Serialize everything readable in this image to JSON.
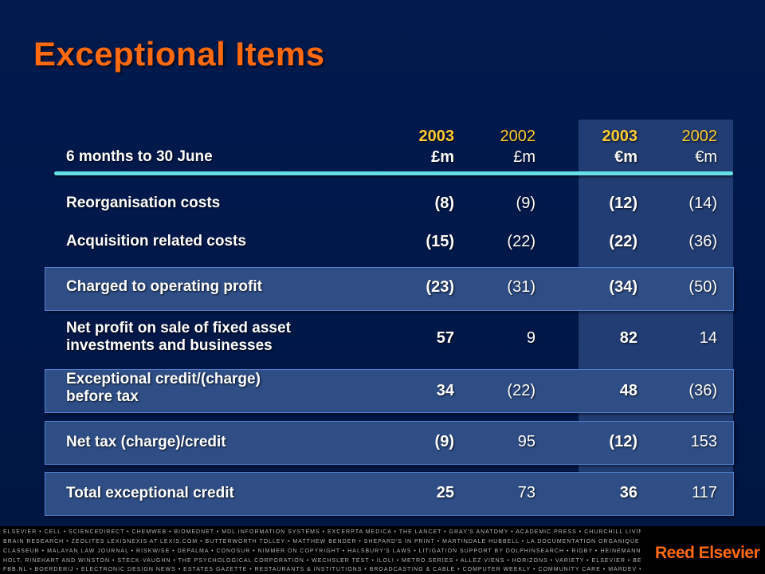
{
  "title": "Exceptional Items",
  "header": {
    "label": "6 months to 30 June",
    "columns": [
      {
        "year": "2003",
        "currency": "£m"
      },
      {
        "year": "2002",
        "currency": "£m"
      },
      {
        "year": "2003",
        "currency": "€m"
      },
      {
        "year": "2002",
        "currency": "€m"
      }
    ]
  },
  "rows": [
    {
      "label": "Reorganisation costs",
      "values": [
        "(8)",
        "(9)",
        "(12)",
        "(14)"
      ]
    },
    {
      "label": "Acquisition related costs",
      "values": [
        "(15)",
        "(22)",
        "(22)",
        "(36)"
      ]
    },
    {
      "label": "Charged to operating profit",
      "values": [
        "(23)",
        "(31)",
        "(34)",
        "(50)"
      ]
    },
    {
      "label_lines": [
        "Net profit on sale of fixed asset",
        "investments and businesses"
      ],
      "values": [
        "57",
        "9",
        "82",
        "14"
      ]
    },
    {
      "label_lines": [
        "Exceptional credit/(charge)",
        "before tax"
      ],
      "values": [
        "34",
        "(22)",
        "48",
        "(36)"
      ]
    },
    {
      "label": "Net tax (charge)/credit",
      "values": [
        "(9)",
        "95",
        "(12)",
        "153"
      ]
    },
    {
      "label": "Total exceptional credit",
      "values": [
        "25",
        "73",
        "36",
        "117"
      ]
    }
  ],
  "footer": {
    "lines": [
      "ELSEVIER • CELL • SCIENCEDIRECT • CHEMWEB • BIOMEDNET • MDL INFORMATION SYSTEMS • EXCERPTA MEDICA • THE LANCET • GRAY'S ANATOMY • ACADEMIC PRESS • CHURCHILL LIVINGSTONE • MOSBY • WB SAUNDERS • MD CONSULT",
      "BRAIN RESEARCH • ZEOLITES LEXISNEXIS AT LEXIS.COM • BUTTERWORTH TOLLEY • MATTHEW BENDER • SHEPARD'S IN PRINT • MARTINDALE HUBBELL • LA DOCUMENTATION ORGANIQUE • EDITIONS DU JURIS",
      "CLASSEUR • MALAYAN LAW JOURNAL • RISKWISE • DEPALMA • CONOSUR • NIMMER ON COPYRIGHT • HALSBURY'S LAWS • LITIGATION SUPPORT BY DOLPHINSEARCH • RIGBY • HEINEMANN • GINN • GREENWOOD",
      "HOLT, RINEHART AND WINSTON • STECK-VAUGHN • THE PSYCHOLOGICAL CORPORATION • WECHSLER TEST • ILOLI • METRO SERIES • ALLEZ VIENS • HORIZONS • VARIETY • ELSEVIER • BELEGGERS BELANGEN",
      "FBB.NL • BOERDERIJ • ELECTRONIC DESIGN NEWS • ESTATES GAZETTE • RESTAURANTS & INSTITUTIONS • BROADCASTING & CABLE • COMPUTER WEEKLY • COMMUNITY CARE • MARDEV • NEW SCIENTIST • FLIGHT INTERNATIONAL"
    ],
    "logo": "Reed Elsevier"
  },
  "colors": {
    "title": "#ff6a10",
    "year": "#ffcc33",
    "rule": "#66e0e8",
    "box": "#2f4e86",
    "background": "#001a4d"
  }
}
